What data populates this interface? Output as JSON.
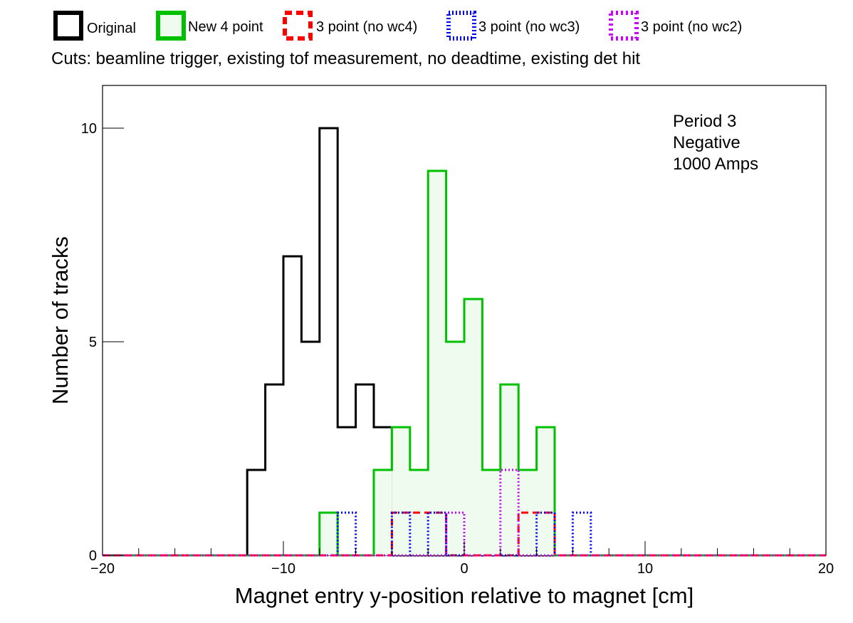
{
  "chart_data": {
    "type": "histogram",
    "cuts_text": "Cuts: beamline trigger, existing tof measurement, no deadtime, existing det hit",
    "xlabel": "Magnet entry y-position relative to magnet [cm]",
    "ylabel": "Number of tracks",
    "xlim": [
      -20,
      20
    ],
    "ylim": [
      0,
      11
    ],
    "x_ticks": [
      -20,
      -10,
      0,
      10,
      20
    ],
    "x_tick_labels": [
      "−20",
      "−10",
      "0",
      "10",
      "20"
    ],
    "y_ticks": [
      0,
      5,
      10
    ],
    "y_tick_labels": [
      "0",
      "5",
      "10"
    ],
    "annotation": [
      "Period 3",
      "Negative",
      "1000 Amps"
    ],
    "bin_width": 1,
    "series": [
      {
        "name": "Original",
        "color": "#000000",
        "style": "solid",
        "fill": false,
        "bins": [
          {
            "x": -12,
            "y": 2
          },
          {
            "x": -11,
            "y": 4
          },
          {
            "x": -10,
            "y": 7
          },
          {
            "x": -9,
            "y": 5
          },
          {
            "x": -8,
            "y": 10
          },
          {
            "x": -7,
            "y": 3
          },
          {
            "x": -6,
            "y": 4
          },
          {
            "x": -5,
            "y": 3
          }
        ]
      },
      {
        "name": "New 4 point",
        "color": "#00c000",
        "style": "solid",
        "fill": true,
        "fill_color": "#eefbee",
        "bins": [
          {
            "x": -8,
            "y": 1
          },
          {
            "x": -5,
            "y": 2
          },
          {
            "x": -4,
            "y": 3
          },
          {
            "x": -3,
            "y": 2
          },
          {
            "x": -2,
            "y": 9
          },
          {
            "x": -1,
            "y": 5
          },
          {
            "x": 0,
            "y": 6
          },
          {
            "x": 1,
            "y": 2
          },
          {
            "x": 2,
            "y": 4
          },
          {
            "x": 3,
            "y": 2
          },
          {
            "x": 4,
            "y": 3
          }
        ]
      },
      {
        "name": "3 point (no wc4)",
        "color": "#ff0000",
        "style": "dashed",
        "fill": false,
        "bins": [
          {
            "x": -4,
            "y": 1
          },
          {
            "x": -3,
            "y": 1
          },
          {
            "x": -2,
            "y": 1
          },
          {
            "x": 3,
            "y": 1
          },
          {
            "x": 4,
            "y": 1
          }
        ]
      },
      {
        "name": "3 point (no wc3)",
        "color": "#0000ff",
        "style": "dotted",
        "fill": false,
        "bins": [
          {
            "x": -7,
            "y": 1
          },
          {
            "x": -4,
            "y": 1
          },
          {
            "x": -2,
            "y": 1
          },
          {
            "x": 4,
            "y": 1
          },
          {
            "x": 6,
            "y": 1
          }
        ]
      },
      {
        "name": "3 point (no wc2)",
        "color": "#cc00ff",
        "style": "dotted",
        "fill": false,
        "bins": [
          {
            "x": -1,
            "y": 1
          },
          {
            "x": 2,
            "y": 2
          }
        ]
      }
    ]
  }
}
